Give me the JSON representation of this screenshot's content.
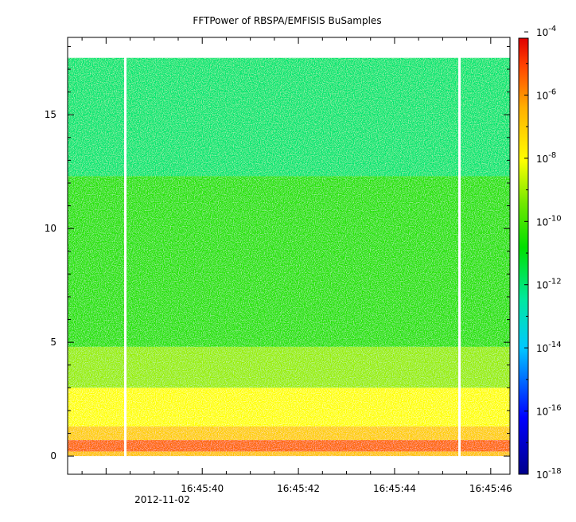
{
  "chart_data": {
    "type": "heatmap",
    "title": "FFTPower of RBSPA/EMFISIS  BuSamples",
    "xlabel": "",
    "ylabel": "",
    "x_ticks": [
      "16:45:40",
      "16:45:42",
      "16:45:44",
      "16:45:46"
    ],
    "x_tick_seconds": [
      40,
      42,
      44,
      46
    ],
    "x_date": "2012-11-02",
    "xlim_seconds": [
      37.2,
      46.4
    ],
    "y_ticks": [
      0,
      5,
      10,
      15
    ],
    "ylim": [
      -0.8,
      18.4
    ],
    "data_ylim": [
      0.0,
      17.5
    ],
    "data_gaps_seconds": [
      38.4,
      45.35
    ],
    "colorbar": {
      "scale": "log",
      "range_exponents": [
        -18,
        -4.2
      ],
      "tick_base": "10",
      "tick_exponents": [
        "-4",
        "-6",
        "-8",
        "-10",
        "-12",
        "-14",
        "-16",
        "-18"
      ],
      "tick_values": [
        -4,
        -6,
        -8,
        -10,
        -12,
        -14,
        -16,
        -18
      ]
    },
    "spectrum_bands": [
      {
        "y_from": 12.3,
        "y_to": 17.5,
        "log_power": -12.0
      },
      {
        "y_from": 4.8,
        "y_to": 12.3,
        "log_power": -10.3
      },
      {
        "y_from": 3.0,
        "y_to": 4.8,
        "log_power": -9.0
      },
      {
        "y_from": 1.3,
        "y_to": 3.0,
        "log_power": -8.0
      },
      {
        "y_from": 0.7,
        "y_to": 1.3,
        "log_power": -7.0
      },
      {
        "y_from": 0.2,
        "y_to": 0.7,
        "log_power": -5.5
      },
      {
        "y_from": 0.0,
        "y_to": 0.2,
        "log_power": -6.8
      }
    ],
    "colors": {
      "background": "#ffffff",
      "axis": "#000000",
      "gap": "#ffffff"
    }
  }
}
